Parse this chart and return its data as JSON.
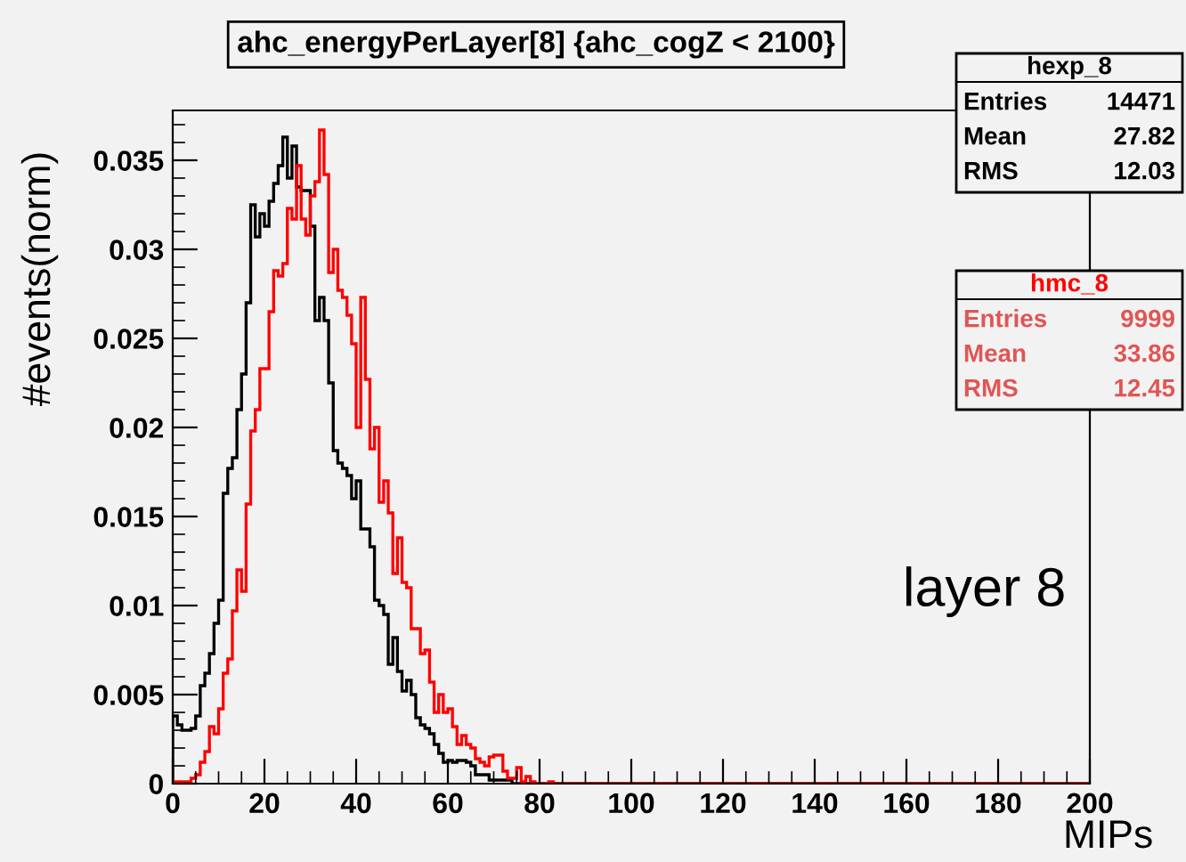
{
  "chart_data": {
    "type": "histogram",
    "title": "ahc_energyPerLayer[8] {ahc_cogZ < 2100}",
    "xlabel": "MIPs",
    "ylabel": "#events(norm)",
    "bins": [
      0,
      1,
      2,
      3,
      4,
      5,
      6,
      7,
      8,
      9,
      10,
      11,
      12,
      13,
      14,
      15,
      16,
      17,
      18,
      19,
      20,
      21,
      22,
      23,
      24,
      25,
      26,
      27,
      28,
      29,
      30,
      31,
      32,
      33,
      34,
      35,
      36,
      37,
      38,
      39,
      40,
      41,
      42,
      43,
      44,
      45,
      46,
      47,
      48,
      49,
      50,
      51,
      52,
      53,
      54,
      55,
      56,
      57,
      58,
      59,
      60,
      61,
      62,
      63,
      64,
      65,
      66,
      67,
      68,
      69,
      70,
      71,
      72,
      73,
      74,
      75,
      76,
      77,
      78,
      79,
      80,
      81,
      82,
      83,
      84,
      85,
      200
    ],
    "series": [
      {
        "name": "hexp_8",
        "color": "#000000",
        "values": [
          0.0038,
          0.0033,
          0.003,
          0.003,
          0.0031,
          0.0038,
          0.0055,
          0.0062,
          0.0073,
          0.009,
          0.0103,
          0.0163,
          0.0177,
          0.0183,
          0.021,
          0.023,
          0.027,
          0.0325,
          0.0307,
          0.032,
          0.0313,
          0.0327,
          0.0337,
          0.0347,
          0.0363,
          0.034,
          0.0358,
          0.0335,
          0.0333,
          0.0333,
          0.0313,
          0.026,
          0.0273,
          0.026,
          0.0225,
          0.0187,
          0.018,
          0.0177,
          0.0173,
          0.016,
          0.017,
          0.0143,
          0.0143,
          0.0133,
          0.0103,
          0.01,
          0.0095,
          0.0067,
          0.0082,
          0.0063,
          0.0052,
          0.0058,
          0.005,
          0.0037,
          0.0033,
          0.0031,
          0.0028,
          0.0022,
          0.0017,
          0.0012,
          0.0013,
          0.0012,
          0.0013,
          0.0013,
          0.0012,
          0.001,
          0.0005,
          0.0005,
          0.0005,
          0.0002,
          0.0002,
          0.0002,
          0.0002,
          0.0002,
          0,
          0,
          0,
          0,
          0,
          0,
          0,
          0,
          0,
          0,
          0,
          0
        ]
      },
      {
        "name": "hmc_8",
        "color": "#ff0000",
        "values": [
          0.0001,
          0.0001,
          0.0001,
          0.0001,
          0.0003,
          0.0005,
          0.0012,
          0.0018,
          0.0032,
          0.0028,
          0.0042,
          0.0062,
          0.007,
          0.0097,
          0.012,
          0.0108,
          0.0157,
          0.0198,
          0.021,
          0.0233,
          0.0233,
          0.0265,
          0.0288,
          0.0285,
          0.0292,
          0.0323,
          0.0317,
          0.0347,
          0.0317,
          0.0308,
          0.033,
          0.0338,
          0.0367,
          0.0342,
          0.0287,
          0.03,
          0.0277,
          0.0273,
          0.0263,
          0.0247,
          0.02,
          0.0273,
          0.0227,
          0.0188,
          0.02,
          0.0158,
          0.017,
          0.0152,
          0.0118,
          0.0138,
          0.0113,
          0.011,
          0.0087,
          0.0087,
          0.0073,
          0.0075,
          0.0057,
          0.004,
          0.005,
          0.004,
          0.0042,
          0.0032,
          0.0022,
          0.0027,
          0.0022,
          0.002,
          0.0014,
          0.0012,
          0.001,
          0.0015,
          0.0016,
          0.0016,
          0.0007,
          0.0003,
          0.0003,
          0.0009,
          0.0001,
          0.0004,
          0.0001,
          0,
          0,
          0,
          0.0001,
          0,
          0,
          0
        ]
      }
    ],
    "xlim": [
      0,
      200
    ],
    "xticks": [
      0,
      20,
      40,
      60,
      80,
      100,
      120,
      140,
      160,
      180,
      200
    ],
    "ylim": [
      0,
      0.0378
    ],
    "yticks": [
      {
        "value": 0,
        "label": "0"
      },
      0.005,
      0.01,
      0.015,
      0.02,
      0.025,
      0.03,
      0.035
    ],
    "grid": false,
    "legend": "top right",
    "annotations": [
      "Entries",
      "14471",
      "Mean",
      "27.82",
      "RMS",
      "12.03",
      "Entries",
      "9999",
      "Mean",
      "33.86",
      "RMS",
      "12.45",
      "layer 8"
    ]
  }
}
